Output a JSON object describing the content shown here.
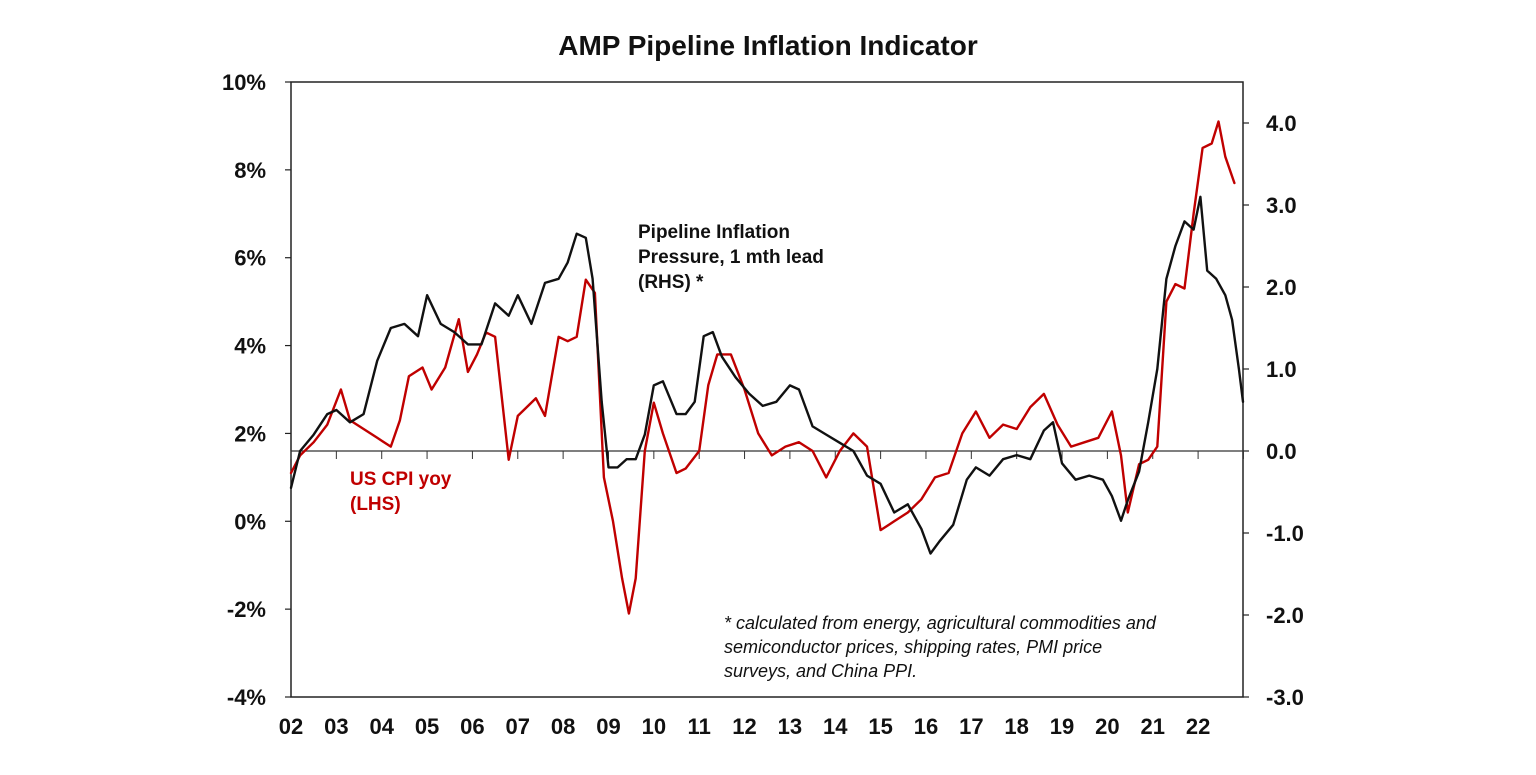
{
  "chart_data": {
    "type": "line",
    "title": "AMP Pipeline Inflation Indicator",
    "x_tick_labels": [
      "02",
      "03",
      "04",
      "05",
      "06",
      "07",
      "08",
      "09",
      "10",
      "11",
      "12",
      "13",
      "14",
      "15",
      "16",
      "17",
      "18",
      "19",
      "20",
      "21",
      "22"
    ],
    "x_range": [
      2002.0,
      2022.99
    ],
    "y_left": {
      "range": [
        -4,
        10
      ],
      "tick_values": [
        10,
        8,
        6,
        4,
        2,
        0,
        -2,
        -4
      ],
      "tick_labels": [
        "10%",
        "8%",
        "6%",
        "4%",
        "2%",
        "0%",
        "-2%",
        "-4%"
      ]
    },
    "y_right": {
      "range": [
        -3.0,
        4.5
      ],
      "tick_values": [
        4.0,
        3.0,
        2.0,
        1.0,
        0.0,
        -1.0,
        -2.0,
        -3.0
      ],
      "tick_labels": [
        "4.0",
        "3.0",
        "2.0",
        "1.0",
        "0.0",
        "-1.0",
        "-2.0",
        "-3.0"
      ]
    },
    "zero_line_rhs": 0.0,
    "series": [
      {
        "name": "US CPI yoy",
        "axis": "left",
        "color": "#c00000",
        "label_lines": [
          "US CPI yoy",
          "(LHS)"
        ],
        "x": [
          2002.0,
          2002.2,
          2002.5,
          2002.8,
          2003.1,
          2003.3,
          2003.6,
          2003.9,
          2004.2,
          2004.4,
          2004.6,
          2004.9,
          2005.1,
          2005.4,
          2005.7,
          2005.9,
          2006.1,
          2006.3,
          2006.5,
          2006.8,
          2007.0,
          2007.2,
          2007.4,
          2007.6,
          2007.9,
          2008.1,
          2008.3,
          2008.5,
          2008.7,
          2008.9,
          2009.1,
          2009.3,
          2009.45,
          2009.6,
          2009.8,
          2010.0,
          2010.2,
          2010.5,
          2010.7,
          2011.0,
          2011.2,
          2011.4,
          2011.7,
          2012.0,
          2012.3,
          2012.6,
          2012.9,
          2013.2,
          2013.5,
          2013.8,
          2014.1,
          2014.4,
          2014.7,
          2015.0,
          2015.3,
          2015.6,
          2015.9,
          2016.2,
          2016.5,
          2016.8,
          2017.1,
          2017.4,
          2017.7,
          2018.0,
          2018.3,
          2018.6,
          2018.9,
          2019.2,
          2019.5,
          2019.8,
          2020.1,
          2020.3,
          2020.45,
          2020.7,
          2020.9,
          2021.1,
          2021.3,
          2021.5,
          2021.7,
          2021.9,
          2022.1,
          2022.3,
          2022.45,
          2022.6,
          2022.8
        ],
        "y": [
          1.1,
          1.5,
          1.8,
          2.2,
          3.0,
          2.3,
          2.1,
          1.9,
          1.7,
          2.3,
          3.3,
          3.5,
          3.0,
          3.5,
          4.6,
          3.4,
          3.8,
          4.3,
          4.2,
          1.4,
          2.4,
          2.6,
          2.8,
          2.4,
          4.2,
          4.1,
          4.2,
          5.5,
          5.2,
          1.0,
          0.0,
          -1.3,
          -2.1,
          -1.3,
          1.6,
          2.7,
          2.0,
          1.1,
          1.2,
          1.6,
          3.1,
          3.8,
          3.8,
          3.0,
          2.0,
          1.5,
          1.7,
          1.8,
          1.6,
          1.0,
          1.6,
          2.0,
          1.7,
          -0.2,
          0.0,
          0.2,
          0.5,
          1.0,
          1.1,
          2.0,
          2.5,
          1.9,
          2.2,
          2.1,
          2.6,
          2.9,
          2.2,
          1.7,
          1.8,
          1.9,
          2.5,
          1.5,
          0.2,
          1.3,
          1.4,
          1.7,
          5.0,
          5.4,
          5.3,
          7.0,
          8.5,
          8.6,
          9.1,
          8.3,
          7.7
        ]
      },
      {
        "name": "Pipeline Inflation Pressure, 1 mth lead (RHS) *",
        "axis": "right",
        "color": "#111111",
        "label_lines": [
          "Pipeline Inflation",
          "Pressure, 1 mth lead",
          "(RHS) *"
        ],
        "x": [
          2002.0,
          2002.2,
          2002.5,
          2002.8,
          2003.0,
          2003.3,
          2003.6,
          2003.9,
          2004.2,
          2004.5,
          2004.8,
          2005.0,
          2005.3,
          2005.6,
          2005.9,
          2006.2,
          2006.5,
          2006.8,
          2007.0,
          2007.3,
          2007.6,
          2007.9,
          2008.1,
          2008.3,
          2008.5,
          2008.65,
          2008.85,
          2009.0,
          2009.2,
          2009.4,
          2009.6,
          2009.8,
          2010.0,
          2010.2,
          2010.5,
          2010.7,
          2010.9,
          2011.1,
          2011.3,
          2011.5,
          2011.8,
          2012.1,
          2012.4,
          2012.7,
          2013.0,
          2013.2,
          2013.5,
          2013.8,
          2014.1,
          2014.4,
          2014.7,
          2015.0,
          2015.3,
          2015.6,
          2015.9,
          2016.1,
          2016.3,
          2016.6,
          2016.9,
          2017.1,
          2017.4,
          2017.7,
          2018.0,
          2018.3,
          2018.6,
          2018.8,
          2019.0,
          2019.3,
          2019.6,
          2019.9,
          2020.1,
          2020.3,
          2020.45,
          2020.7,
          2020.9,
          2021.1,
          2021.3,
          2021.5,
          2021.7,
          2021.9,
          2022.05,
          2022.2,
          2022.4,
          2022.6,
          2022.75,
          2022.9,
          2022.99
        ],
        "y": [
          -0.45,
          0.0,
          0.2,
          0.45,
          0.5,
          0.35,
          0.45,
          1.1,
          1.5,
          1.55,
          1.4,
          1.9,
          1.55,
          1.45,
          1.3,
          1.3,
          1.8,
          1.65,
          1.9,
          1.55,
          2.05,
          2.1,
          2.3,
          2.65,
          2.6,
          2.1,
          0.6,
          -0.2,
          -0.2,
          -0.1,
          -0.1,
          0.2,
          0.8,
          0.85,
          0.45,
          0.45,
          0.6,
          1.4,
          1.45,
          1.15,
          0.9,
          0.7,
          0.55,
          0.6,
          0.8,
          0.75,
          0.3,
          0.2,
          0.1,
          0.0,
          -0.3,
          -0.4,
          -0.75,
          -0.65,
          -0.95,
          -1.25,
          -1.1,
          -0.9,
          -0.35,
          -0.2,
          -0.3,
          -0.1,
          -0.05,
          -0.1,
          0.25,
          0.35,
          -0.15,
          -0.35,
          -0.3,
          -0.35,
          -0.55,
          -0.85,
          -0.6,
          -0.25,
          0.35,
          1.0,
          2.1,
          2.5,
          2.8,
          2.7,
          3.1,
          2.2,
          2.1,
          1.9,
          1.6,
          1.0,
          0.6
        ]
      }
    ],
    "annotation_lines": [
      "* calculated from energy, agricultural commodities and",
      "semiconductor prices, shipping rates, PMI price",
      "surveys, and China PPI."
    ]
  }
}
